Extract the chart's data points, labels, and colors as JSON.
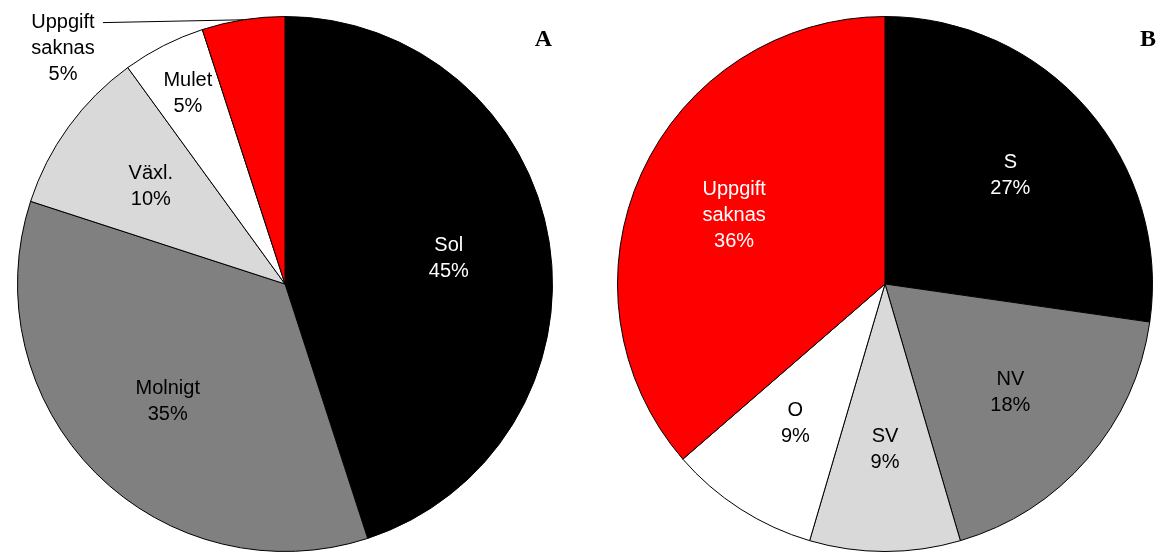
{
  "chart_data": [
    {
      "type": "pie",
      "title": "A",
      "categories": [
        "Sol",
        "Molnigt",
        "Växl.",
        "Mulet",
        "Uppgift saknas"
      ],
      "values": [
        45,
        35,
        10,
        5,
        5
      ],
      "value_labels": [
        "45%",
        "35%",
        "10%",
        "5%",
        "5%"
      ],
      "colors": [
        "#000000",
        "#808080",
        "#d9d9d9",
        "#ffffff",
        "#ff0000"
      ],
      "legend": false
    },
    {
      "type": "pie",
      "title": "B",
      "categories": [
        "S",
        "NV",
        "SV",
        "O",
        "Uppgift saknas"
      ],
      "values": [
        27,
        18,
        9,
        9,
        36
      ],
      "value_labels": [
        "27%",
        "18%",
        "9%",
        "9%",
        "36%"
      ],
      "colors": [
        "#000000",
        "#808080",
        "#d9d9d9",
        "#ffffff",
        "#ff0000"
      ],
      "legend": false
    }
  ]
}
